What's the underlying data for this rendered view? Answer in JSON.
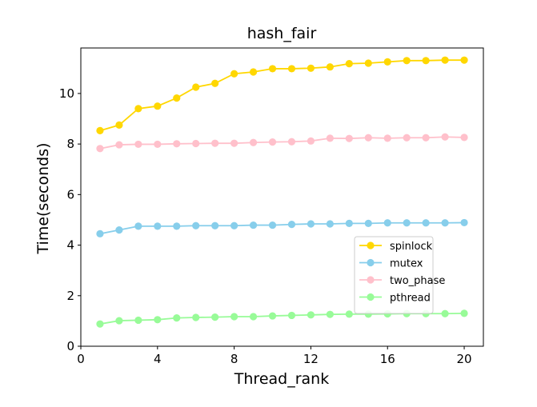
{
  "chart_data": {
    "type": "line",
    "title": "hash_fair",
    "xlabel": "Thread_rank",
    "ylabel": "Time(seconds)",
    "xlim": [
      0,
      21
    ],
    "ylim": [
      0,
      11.8
    ],
    "xticks": [
      0,
      4,
      8,
      12,
      16,
      20
    ],
    "yticks": [
      0,
      2,
      4,
      6,
      8,
      10
    ],
    "grid": false,
    "legend_position": "center-right",
    "x": [
      1,
      2,
      3,
      4,
      5,
      6,
      7,
      8,
      9,
      10,
      11,
      12,
      13,
      14,
      15,
      16,
      17,
      18,
      19,
      20
    ],
    "series": [
      {
        "name": "spinlock",
        "color": "#ffd700",
        "values": [
          8.53,
          8.75,
          9.4,
          9.5,
          9.82,
          10.25,
          10.4,
          10.78,
          10.85,
          10.98,
          10.98,
          11.0,
          11.05,
          11.18,
          11.2,
          11.25,
          11.3,
          11.3,
          11.32,
          11.32
        ]
      },
      {
        "name": "mutex",
        "color": "#87ceeb",
        "values": [
          4.45,
          4.6,
          4.75,
          4.75,
          4.75,
          4.77,
          4.77,
          4.77,
          4.79,
          4.79,
          4.82,
          4.84,
          4.84,
          4.86,
          4.86,
          4.88,
          4.88,
          4.88,
          4.88,
          4.89
        ]
      },
      {
        "name": "two_phase",
        "color": "#ffc0cb",
        "values": [
          7.82,
          7.97,
          7.99,
          7.99,
          8.01,
          8.02,
          8.03,
          8.03,
          8.06,
          8.08,
          8.09,
          8.12,
          8.23,
          8.22,
          8.25,
          8.23,
          8.25,
          8.25,
          8.28,
          8.26
        ]
      },
      {
        "name": "pthread",
        "color": "#98fb98",
        "values": [
          0.88,
          1.01,
          1.03,
          1.05,
          1.12,
          1.14,
          1.15,
          1.17,
          1.17,
          1.2,
          1.22,
          1.24,
          1.26,
          1.27,
          1.27,
          1.28,
          1.29,
          1.29,
          1.29,
          1.3
        ]
      }
    ]
  }
}
